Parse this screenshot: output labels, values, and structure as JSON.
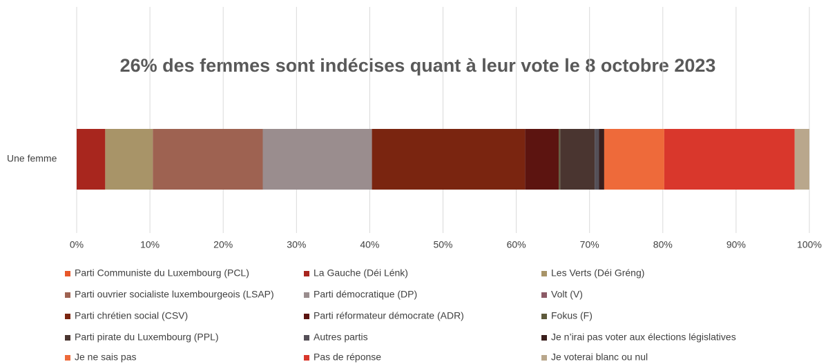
{
  "chart_data": {
    "type": "stacked-bar-horizontal",
    "title": "26% des femmes sont indécises quant à leur vote le 8 octobre 2023",
    "categories": [
      "Une femme"
    ],
    "xlim": [
      0,
      100
    ],
    "xticks": [
      {
        "value": 0,
        "label": "0%"
      },
      {
        "value": 10,
        "label": "10%"
      },
      {
        "value": 20,
        "label": "20%"
      },
      {
        "value": 30,
        "label": "30%"
      },
      {
        "value": 40,
        "label": "40%"
      },
      {
        "value": 50,
        "label": "50%"
      },
      {
        "value": 60,
        "label": "60%"
      },
      {
        "value": 70,
        "label": "70%"
      },
      {
        "value": 80,
        "label": "80%"
      },
      {
        "value": 90,
        "label": "90%"
      },
      {
        "value": 100,
        "label": "100%"
      }
    ],
    "grid": true,
    "series": [
      {
        "name": "Parti Communiste du Luxembourg (PCL)",
        "color": "#e8572a",
        "values": [
          0
        ]
      },
      {
        "name": "La Gauche (Déi Lénk)",
        "color": "#a8261e",
        "values": [
          3.9
        ]
      },
      {
        "name": "Les Verts (Déi Gréng)",
        "color": "#a89468",
        "values": [
          6.5
        ]
      },
      {
        "name": "Parti ouvrier socialiste luxembourgeois (LSAP)",
        "color": "#9e6251",
        "values": [
          15.0
        ]
      },
      {
        "name": "Parti démocratique (DP)",
        "color": "#9a8d8e",
        "values": [
          14.9
        ]
      },
      {
        "name": "Volt (V)",
        "color": "#8c5a66",
        "values": [
          0
        ]
      },
      {
        "name": "Parti chrétien social (CSV)",
        "color": "#7a2510",
        "values": [
          20.9
        ]
      },
      {
        "name": "Parti réformateur démocrate (ADR)",
        "color": "#5c1410",
        "values": [
          4.6
        ]
      },
      {
        "name": "Fokus (F)",
        "color": "#5e5a3c",
        "values": [
          0.2
        ]
      },
      {
        "name": "Parti pirate du Luxembourg (PPL)",
        "color": "#4a3530",
        "values": [
          4.7
        ]
      },
      {
        "name": "Autres partis",
        "color": "#555058",
        "values": [
          0.6
        ]
      },
      {
        "name": "Je n’irai pas voter aux élections législatives",
        "color": "#3a1e1c",
        "values": [
          0.7
        ]
      },
      {
        "name": "Je ne sais pas",
        "color": "#ee6a3a",
        "values": [
          8.2
        ]
      },
      {
        "name": "Pas de réponse",
        "color": "#d9372c",
        "values": [
          17.8
        ]
      },
      {
        "name": "Je voterai blanc ou nul",
        "color": "#b9a78c",
        "values": [
          2.0
        ]
      }
    ]
  }
}
